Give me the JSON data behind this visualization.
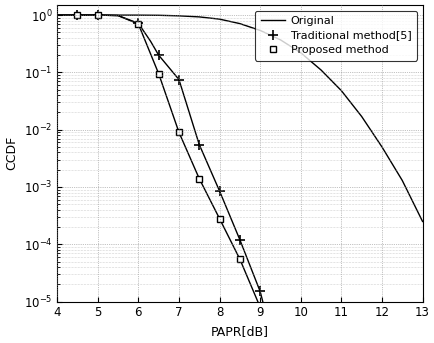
{
  "xlabel": "PAPR[dB]",
  "ylabel": "CCDF",
  "xlim": [
    4,
    13
  ],
  "legend": [
    "Original",
    "Traditional method[5]",
    "Proposed method"
  ],
  "original_x": [
    4.0,
    4.5,
    5.0,
    5.5,
    6.0,
    6.5,
    7.0,
    7.5,
    8.0,
    8.5,
    9.0,
    9.5,
    10.0,
    10.5,
    11.0,
    11.5,
    12.0,
    12.5,
    13.0
  ],
  "original_y": [
    1.0,
    1.0,
    1.0,
    0.999,
    0.998,
    0.992,
    0.97,
    0.93,
    0.85,
    0.71,
    0.54,
    0.37,
    0.22,
    0.11,
    0.048,
    0.017,
    0.005,
    0.0013,
    0.00025
  ],
  "trad_x": [
    4.0,
    4.5,
    5.0,
    5.5,
    6.0,
    6.3,
    6.5,
    7.0,
    7.5,
    8.0,
    8.5,
    9.0,
    9.1
  ],
  "trad_y": [
    1.0,
    1.0,
    1.0,
    0.98,
    0.72,
    0.35,
    0.2,
    0.075,
    0.0055,
    0.00085,
    0.00012,
    1.5e-05,
    8e-06
  ],
  "trad_marker_x": [
    4.5,
    5.0,
    6.0,
    6.5,
    7.0,
    7.5,
    8.0,
    8.5,
    9.0
  ],
  "trad_marker_y": [
    1.0,
    1.0,
    0.72,
    0.2,
    0.075,
    0.0055,
    0.00085,
    0.00012,
    1.5e-05
  ],
  "prop_x": [
    4.0,
    4.5,
    5.0,
    5.5,
    6.0,
    6.5,
    7.0,
    7.5,
    8.0,
    8.5,
    9.0
  ],
  "prop_y": [
    1.0,
    1.0,
    1.0,
    0.98,
    0.7,
    0.095,
    0.009,
    0.0014,
    0.00028,
    5.5e-05,
    8e-06
  ],
  "prop_marker_x": [
    4.5,
    5.0,
    6.0,
    6.5,
    7.0,
    7.5,
    8.0,
    8.5,
    9.0
  ],
  "prop_marker_y": [
    1.0,
    1.0,
    0.7,
    0.095,
    0.009,
    0.0014,
    0.00028,
    5.5e-05,
    8e-06
  ]
}
